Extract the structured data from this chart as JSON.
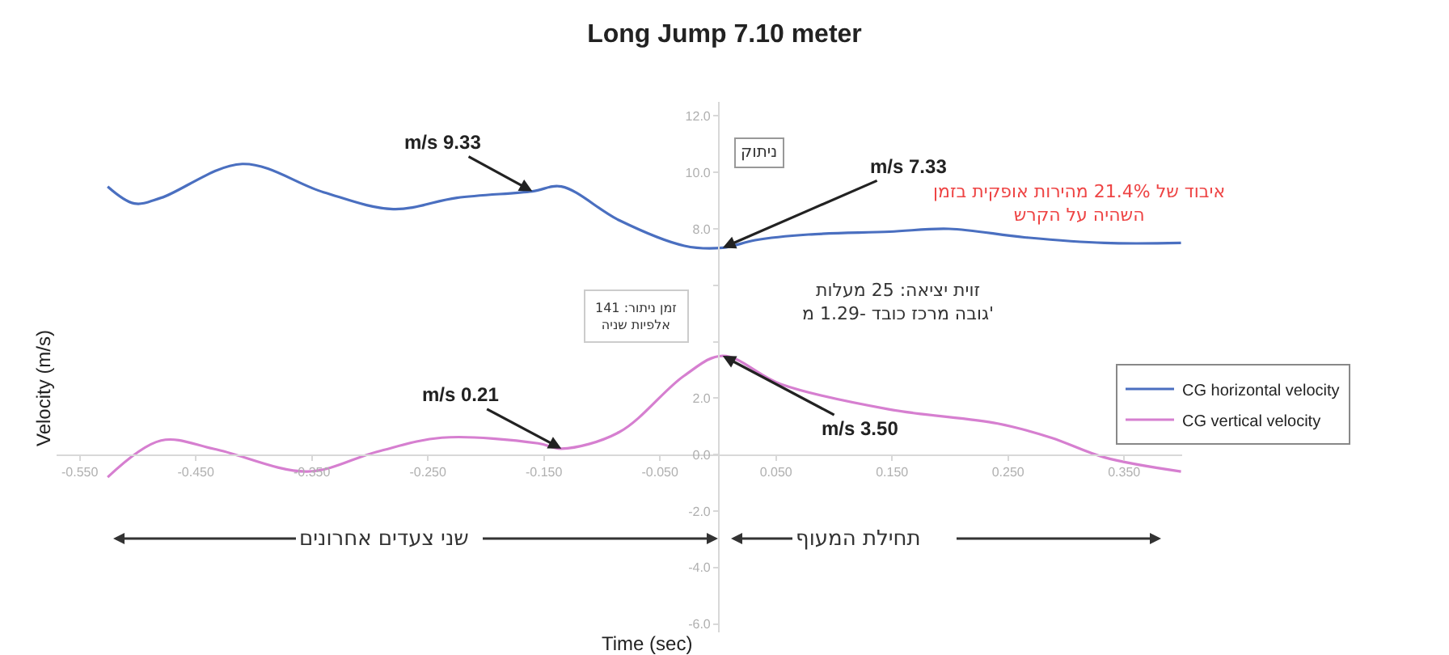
{
  "chart_data": {
    "type": "line",
    "title": "Long Jump 7.10 meter",
    "xlabel": "Time (sec)",
    "ylabel": "Velocity (m/s)",
    "xlim": [
      -0.57,
      0.4
    ],
    "ylim": [
      -6.3,
      12.5
    ],
    "xticks": [
      {
        "value": -0.55,
        "label": "-0.550"
      },
      {
        "value": -0.45,
        "label": "-0.450"
      },
      {
        "value": -0.35,
        "label": "-0.350"
      },
      {
        "value": -0.25,
        "label": "-0.250"
      },
      {
        "value": -0.15,
        "label": "-0.150"
      },
      {
        "value": -0.05,
        "label": "-0.050"
      },
      {
        "value": 0.05,
        "label": "0.050"
      },
      {
        "value": 0.15,
        "label": "0.150"
      },
      {
        "value": 0.25,
        "label": "0.250"
      },
      {
        "value": 0.35,
        "label": "0.350"
      }
    ],
    "yticks": [
      {
        "value": 12,
        "label": "12.0"
      },
      {
        "value": 10,
        "label": "10.0"
      },
      {
        "value": 8,
        "label": "8.0"
      },
      {
        "value": 6,
        "label": null
      },
      {
        "value": 4,
        "label": null
      },
      {
        "value": 2,
        "label": "2.0"
      },
      {
        "value": 0,
        "label": "0.0"
      },
      {
        "value": -2,
        "label": "-2.0"
      },
      {
        "value": -4,
        "label": "-4.0"
      },
      {
        "value": -6,
        "label": "-6.0"
      }
    ],
    "legend": "right",
    "marker": "none",
    "line_style": "solid",
    "series": [
      {
        "name": "CG horizontal velocity",
        "color": "#4a6fc0",
        "x": [
          -0.526,
          -0.503,
          -0.48,
          -0.41,
          -0.34,
          -0.28,
          -0.225,
          -0.16,
          -0.135,
          -0.085,
          -0.029,
          0.004,
          0.032,
          0.078,
          0.148,
          0.199,
          0.264,
          0.333,
          0.399
        ],
        "values": [
          9.5,
          8.9,
          9.1,
          10.3,
          9.3,
          8.7,
          9.1,
          9.33,
          9.5,
          8.3,
          7.4,
          7.33,
          7.6,
          7.8,
          7.9,
          8.0,
          7.7,
          7.5,
          7.5
        ]
      },
      {
        "name": "CG vertical velocity",
        "color": "#d67fd0",
        "x": [
          -0.526,
          -0.48,
          -0.434,
          -0.354,
          -0.294,
          -0.238,
          -0.155,
          -0.135,
          -0.085,
          -0.029,
          0.004,
          0.054,
          0.148,
          0.241,
          0.287,
          0.333,
          0.399
        ],
        "values": [
          -0.8,
          0.5,
          0.2,
          -0.6,
          0.1,
          0.6,
          0.4,
          0.21,
          0.8,
          2.8,
          3.5,
          2.5,
          1.6,
          1.1,
          0.6,
          -0.1,
          -0.6
        ]
      }
    ],
    "annotations": [
      {
        "text": "m/s 9.33",
        "x": -0.16,
        "y": 9.33
      },
      {
        "text": "m/s 7.33",
        "x": 0.004,
        "y": 7.33
      },
      {
        "text": "m/s 0.21",
        "x": -0.135,
        "y": 0.21
      },
      {
        "text": "m/s 3.50",
        "x": 0.004,
        "y": 3.5
      },
      "ניתוק",
      "איבוד של 21.4% מהירות אופקית בזמן\nהשהיה על הקרש",
      "זוית יציאה: 25 מעלות\nגובה מרכז כובד -1.29 מ'",
      "זמן ניתור: 141\nאלפיות שניה",
      "שני צעדים אחרונים",
      "תחילת המעוף"
    ]
  }
}
